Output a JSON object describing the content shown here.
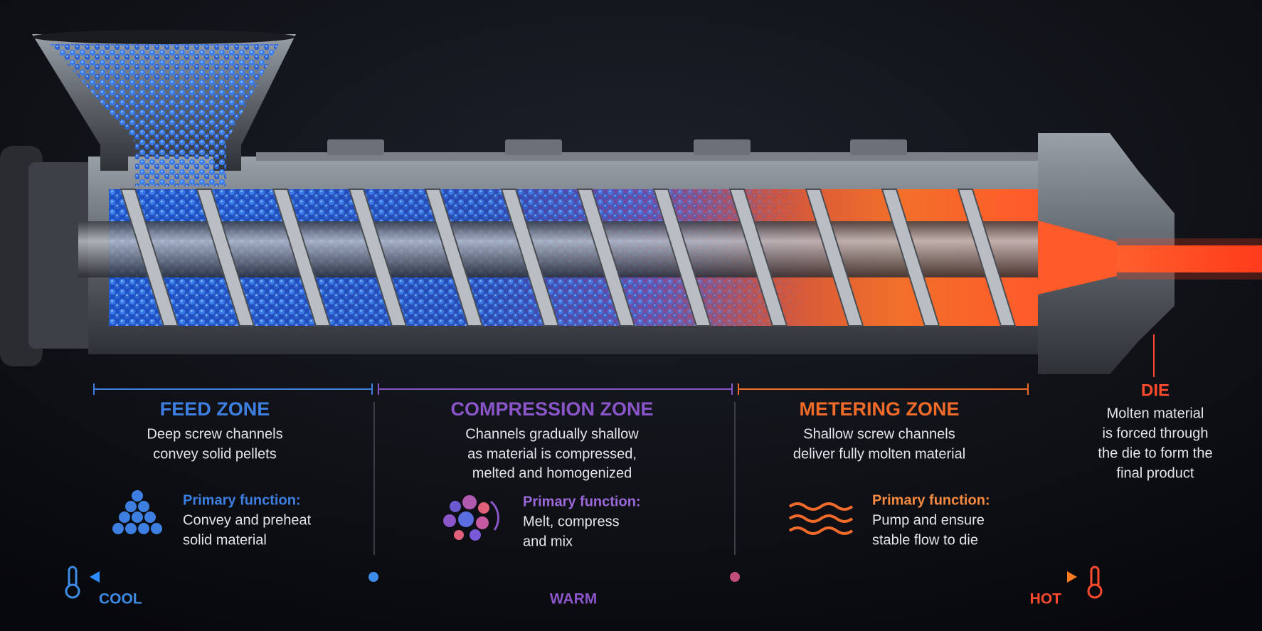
{
  "zones": [
    {
      "title": "FEED ZONE",
      "description": [
        "Deep screw channels",
        "convey solid pellets"
      ],
      "function_label": "Primary function:",
      "function_text": [
        "Convey and preheat",
        "solid material"
      ]
    },
    {
      "title": "COMPRESSION ZONE",
      "description": [
        "Channels gradually shallow",
        "as material is compressed,",
        "melted and homogenized"
      ],
      "function_label": "Primary function:",
      "function_text": [
        "Melt, compress",
        "and mix"
      ]
    },
    {
      "title": "METERING ZONE",
      "description": [
        "Shallow screw channels",
        "deliver fully molten material"
      ],
      "function_label": "Primary function:",
      "function_text": [
        "Pump and ensure",
        "stable flow to die"
      ]
    }
  ],
  "die": {
    "title": "DIE",
    "description": [
      "Molten material",
      "is forced through",
      "the die to form the",
      "final product"
    ]
  },
  "temperature_scale": {
    "cool": "COOL",
    "warm": "WARM",
    "hot": "HOT"
  }
}
